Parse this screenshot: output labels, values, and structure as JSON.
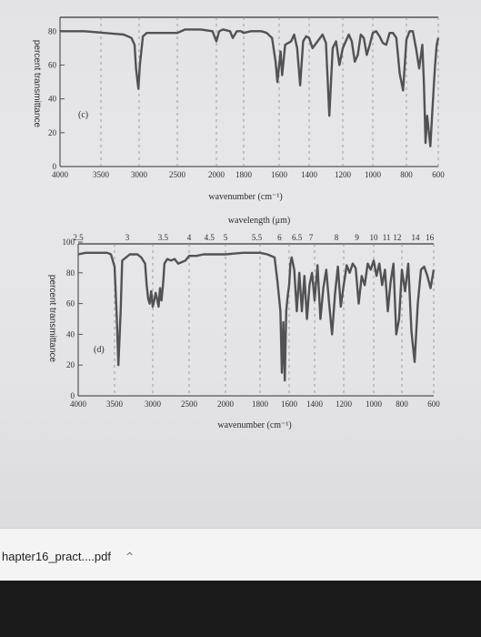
{
  "chart_data": [
    {
      "type": "line",
      "panel_label": "(c)",
      "xlabel": "wavenumber (cm⁻¹)",
      "ylabel": "percent transmittance",
      "xlim": [
        4000,
        600
      ],
      "ylim": [
        0,
        85
      ],
      "x_ticks": [
        4000,
        3500,
        3000,
        2500,
        2000,
        1800,
        1600,
        1400,
        1200,
        1000,
        800,
        600
      ],
      "y_ticks": [
        0,
        20,
        40,
        60,
        80
      ],
      "grid": "dashed vertical",
      "series": [
        {
          "x": [
            4000,
            3700,
            3450,
            3200,
            3100,
            3060,
            3040,
            3010,
            2990,
            2950,
            2900,
            2700,
            2500,
            2400,
            2200,
            2050,
            2000,
            1980,
            1950,
            1900,
            1880,
            1850,
            1820,
            1800,
            1760,
            1720,
            1700,
            1670,
            1640,
            1620,
            1610,
            1590,
            1580,
            1560,
            1520,
            1500,
            1480,
            1460,
            1440,
            1420,
            1400,
            1380,
            1350,
            1320,
            1300,
            1280,
            1260,
            1240,
            1220,
            1200,
            1180,
            1160,
            1140,
            1120,
            1100,
            1080,
            1060,
            1040,
            1020,
            1000,
            980,
            960,
            940,
            920,
            900,
            880,
            860,
            840,
            820,
            800,
            780,
            760,
            740,
            720,
            700,
            690,
            680,
            670,
            650,
            630,
            620,
            610,
            600
          ],
          "y": [
            80,
            80,
            79,
            78,
            76,
            72,
            58,
            46,
            60,
            77,
            79,
            79,
            79,
            81,
            81,
            80,
            74,
            80,
            81,
            80,
            76,
            80,
            80,
            79,
            80,
            80,
            80,
            79,
            76,
            62,
            50,
            68,
            54,
            72,
            74,
            78,
            70,
            48,
            74,
            77,
            76,
            70,
            74,
            78,
            73,
            30,
            70,
            74,
            60,
            70,
            74,
            78,
            74,
            62,
            66,
            78,
            76,
            66,
            72,
            79,
            80,
            77,
            73,
            72,
            79,
            79,
            76,
            55,
            45,
            75,
            80,
            80,
            70,
            58,
            72,
            48,
            14,
            30,
            12,
            45,
            60,
            72,
            76
          ]
        }
      ]
    },
    {
      "type": "line",
      "panel_label": "(d)",
      "xlabel": "wavenumber (cm⁻¹)",
      "ylabel": "percent transmittance",
      "x2label": "wavelength (μm)",
      "xlim": [
        4000,
        600
      ],
      "ylim": [
        0,
        100
      ],
      "x_ticks": [
        4000,
        3500,
        3000,
        2500,
        2000,
        1800,
        1600,
        1400,
        1200,
        1000,
        800,
        600
      ],
      "y_ticks": [
        0,
        20,
        40,
        60,
        80,
        100
      ],
      "wavelength_ticks": [
        "2.5",
        "3",
        "3.5",
        "4",
        "4.5",
        "5",
        "5.5",
        "6",
        "6.5",
        "7",
        "8",
        "9",
        "10",
        "11",
        "12",
        "14",
        "16"
      ],
      "grid": "dashed vertical",
      "series": [
        {
          "x": [
            4000,
            3900,
            3800,
            3600,
            3550,
            3500,
            3470,
            3450,
            3420,
            3400,
            3300,
            3200,
            3150,
            3100,
            3080,
            3060,
            3040,
            3020,
            3000,
            2980,
            2960,
            2940,
            2920,
            2900,
            2880,
            2860,
            2850,
            2840,
            2800,
            2750,
            2700,
            2650,
            2600,
            2550,
            2500,
            2400,
            2300,
            2200,
            2100,
            2000,
            1900,
            1800,
            1750,
            1700,
            1680,
            1660,
            1650,
            1640,
            1630,
            1620,
            1610,
            1600,
            1590,
            1580,
            1560,
            1540,
            1520,
            1500,
            1480,
            1460,
            1440,
            1420,
            1400,
            1380,
            1360,
            1340,
            1320,
            1300,
            1280,
            1260,
            1240,
            1220,
            1200,
            1180,
            1160,
            1140,
            1120,
            1100,
            1080,
            1060,
            1040,
            1020,
            1000,
            980,
            960,
            940,
            920,
            900,
            880,
            860,
            840,
            820,
            800,
            780,
            760,
            740,
            720,
            700,
            680,
            660,
            640,
            620,
            600
          ],
          "y": [
            92,
            93,
            93,
            93,
            92,
            84,
            50,
            20,
            55,
            88,
            92,
            92,
            90,
            86,
            72,
            63,
            60,
            68,
            58,
            62,
            67,
            63,
            58,
            70,
            62,
            72,
            78,
            86,
            89,
            88,
            89,
            86,
            87,
            88,
            91,
            91,
            92,
            92,
            92,
            92,
            93,
            93,
            92,
            90,
            74,
            55,
            15,
            48,
            10,
            55,
            65,
            72,
            86,
            90,
            82,
            55,
            80,
            55,
            78,
            50,
            72,
            80,
            62,
            85,
            50,
            70,
            82,
            60,
            40,
            66,
            84,
            58,
            72,
            85,
            80,
            86,
            83,
            60,
            78,
            72,
            86,
            82,
            88,
            78,
            86,
            72,
            82,
            55,
            74,
            86,
            40,
            50,
            82,
            68,
            86,
            42,
            22,
            60,
            82,
            84,
            78,
            70,
            82
          ]
        }
      ]
    }
  ],
  "download_bar": {
    "filename": "hapter16_pract....pdf",
    "chevron": "^"
  }
}
